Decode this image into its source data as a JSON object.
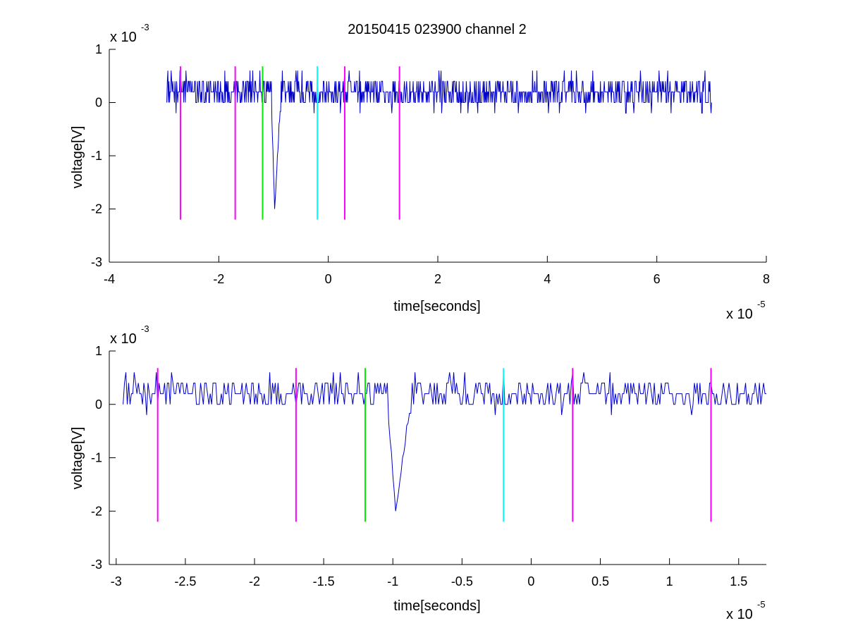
{
  "figure": {
    "title": "20150415 023900 channel 2",
    "background": "#ffffff"
  },
  "colors": {
    "signal": "#0000c8",
    "magenta": "#ff00ff",
    "green": "#00ee00",
    "cyan": "#00ffff",
    "axes": "#000000"
  },
  "chart_data": [
    {
      "type": "line",
      "title": "20150415 023900 channel 2",
      "xlabel": "time[seconds]",
      "ylabel": "voltage[V]",
      "x_multiplier": "x 10",
      "x_exponent": "-5",
      "y_multiplier": "x 10",
      "y_exponent": "-3",
      "xlim": [
        -4e-05,
        8e-05
      ],
      "ylim": [
        -0.003,
        0.001
      ],
      "xticks": [
        -4e-05,
        -2e-05,
        0,
        2e-05,
        4e-05,
        6e-05,
        8e-05
      ],
      "xtick_labels": [
        "-4",
        "-2",
        "0",
        "2",
        "4",
        "6",
        "8"
      ],
      "yticks": [
        -0.003,
        -0.002,
        -0.001,
        0,
        0.001
      ],
      "ytick_labels": [
        "-3",
        "-2",
        "-1",
        "0",
        "1"
      ],
      "grid": false,
      "signal": {
        "color": "#0000c8",
        "t_start": -2.95e-05,
        "t_end": 7e-05,
        "sample_step": 1e-07,
        "baseline": 0.0001,
        "noise_levels": [
          0,
          0.0002,
          0.0004
        ],
        "spike_min": -0.002,
        "spike_time": -9.8e-06
      },
      "markers": [
        {
          "x": -2.7e-05,
          "y_top": 0.00068,
          "y_bottom": -0.0022,
          "color": "#ff00ff"
        },
        {
          "x": -1.7e-05,
          "y_top": 0.00068,
          "y_bottom": -0.0022,
          "color": "#ff00ff"
        },
        {
          "x": -1.2e-05,
          "y_top": 0.00068,
          "y_bottom": -0.0022,
          "color": "#00ee00"
        },
        {
          "x": -2e-06,
          "y_top": 0.00068,
          "y_bottom": -0.0022,
          "color": "#00ffff"
        },
        {
          "x": 3e-06,
          "y_top": 0.00068,
          "y_bottom": -0.0022,
          "color": "#ff00ff"
        },
        {
          "x": 1.3e-05,
          "y_top": 0.00068,
          "y_bottom": -0.0022,
          "color": "#ff00ff"
        }
      ]
    },
    {
      "type": "line",
      "title": "",
      "xlabel": "time[seconds]",
      "ylabel": "voltage[V]",
      "x_multiplier": "x 10",
      "x_exponent": "-5",
      "y_multiplier": "x 10",
      "y_exponent": "-3",
      "xlim": [
        -3.05e-05,
        1.7e-05
      ],
      "ylim": [
        -0.003,
        0.001
      ],
      "xticks": [
        -3e-05,
        -2.5e-05,
        -2e-05,
        -1.5e-05,
        -1e-05,
        -5e-06,
        0,
        5e-06,
        1e-05,
        1.5e-05
      ],
      "xtick_labels": [
        "-3",
        "-2.5",
        "-2",
        "-1.5",
        "-1",
        "-0.5",
        "0",
        "0.5",
        "1",
        "1.5"
      ],
      "yticks": [
        -0.003,
        -0.002,
        -0.001,
        0,
        0.001
      ],
      "ytick_labels": [
        "-3",
        "-2",
        "-1",
        "0",
        "1"
      ],
      "grid": false,
      "signal": {
        "color": "#0000c8",
        "t_start": -2.95e-05,
        "t_end": 1.7e-05,
        "sample_step": 1e-07,
        "baseline": 0.0001,
        "noise_levels": [
          0,
          0.0002,
          0.0004
        ],
        "spike_min": -0.002,
        "spike_time": -9.8e-06
      },
      "markers": [
        {
          "x": -2.7e-05,
          "y_top": 0.00068,
          "y_bottom": -0.0022,
          "color": "#ff00ff"
        },
        {
          "x": -1.7e-05,
          "y_top": 0.00068,
          "y_bottom": -0.0022,
          "color": "#ff00ff"
        },
        {
          "x": -1.2e-05,
          "y_top": 0.00068,
          "y_bottom": -0.0022,
          "color": "#00ee00"
        },
        {
          "x": -2e-06,
          "y_top": 0.00068,
          "y_bottom": -0.0022,
          "color": "#00ffff"
        },
        {
          "x": 3e-06,
          "y_top": 0.00068,
          "y_bottom": -0.0022,
          "color": "#ff00ff"
        },
        {
          "x": 1.3e-05,
          "y_top": 0.00068,
          "y_bottom": -0.0022,
          "color": "#ff00ff"
        }
      ]
    }
  ]
}
